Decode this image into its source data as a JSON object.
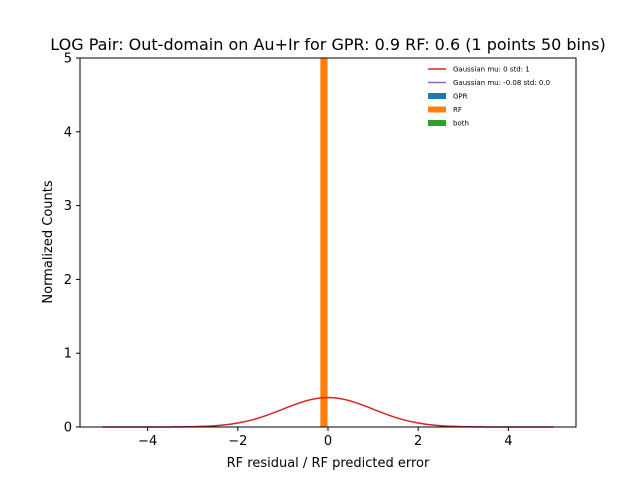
{
  "chart_data": {
    "type": "bar",
    "title": "LOG Pair: Out-domain on Au+Ir for GPR: 0.9 RF: 0.6 (1 points 50 bins)",
    "xlabel": "RF residual / RF predicted error",
    "ylabel": "Normalized Counts",
    "xlim": [
      -5.5,
      5.5
    ],
    "ylim": [
      0,
      5
    ],
    "xticks": [
      -4,
      -2,
      0,
      2,
      4
    ],
    "xtick_labels": [
      "−4",
      "−2",
      "0",
      "2",
      "4"
    ],
    "yticks": [
      0,
      1,
      2,
      3,
      4,
      5
    ],
    "ytick_labels": [
      "0",
      "1",
      "2",
      "3",
      "4",
      "5"
    ],
    "grid": false,
    "legend_position": "top-right",
    "histogram_bars": [
      {
        "series": "RF",
        "x_start": -0.17,
        "x_end": -0.01,
        "value": 5.0
      }
    ],
    "curves": [
      {
        "name": "Gaussian mu: 0 std: 1",
        "kind": "gaussian",
        "mu": 0,
        "std": 1,
        "x_range": [
          -5,
          5
        ],
        "color": "#d62728"
      }
    ],
    "legend": [
      {
        "label": "Gaussian mu: 0 std: 1",
        "kind": "line",
        "color": "#d62728"
      },
      {
        "label": "Gaussian mu: -0.08 std: 0.0",
        "kind": "line",
        "color": "#9467bd"
      },
      {
        "label": "GPR",
        "kind": "patch",
        "color": "#1f77b4"
      },
      {
        "label": "RF",
        "kind": "patch",
        "color": "#ff7f0e"
      },
      {
        "label": "both",
        "kind": "patch",
        "color": "#2ca02c"
      }
    ]
  }
}
